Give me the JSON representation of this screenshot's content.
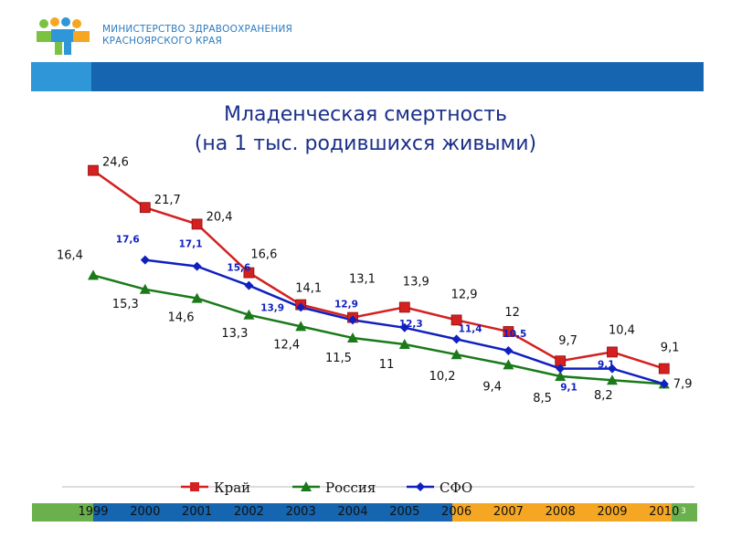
{
  "header": {
    "org_line1": "МИНИСТЕРСТВО ЗДРАВООХРАНЕНИЯ",
    "org_line2": "КРАСНОЯРСКОГО КРАЯ"
  },
  "slide": {
    "title_line1": "Младенческая смертность",
    "title_line2": "(на 1 тыс. родившихся живыми)",
    "page_number": "3"
  },
  "colors": {
    "kray": "#d42020",
    "russia": "#1a7a1a",
    "sfo": "#1020c0",
    "bar_green": "#6ab04c",
    "bar_blue": "#1565b0",
    "bar_orange": "#f5a623"
  },
  "chart_data": {
    "type": "line",
    "title": "Младенческая смертность (на 1 тыс. родившихся живыми)",
    "categories": [
      "1999",
      "2000",
      "2001",
      "2002",
      "2003",
      "2004",
      "2005",
      "2006",
      "2007",
      "2008",
      "2009",
      "2010"
    ],
    "series": [
      {
        "name": "Край",
        "values": [
          24.6,
          21.7,
          20.4,
          16.6,
          14.1,
          13.1,
          13.9,
          12.9,
          12,
          9.7,
          10.4,
          9.1
        ],
        "labels": [
          "24,6",
          "21,7",
          "20,4",
          "16,6",
          "14,1",
          "13,1",
          "13,9",
          "12,9",
          "12",
          "9,7",
          "10,4",
          "9,1"
        ]
      },
      {
        "name": "Россия",
        "values": [
          16.4,
          15.3,
          14.6,
          13.3,
          12.4,
          11.5,
          11,
          10.2,
          9.4,
          8.5,
          8.2,
          7.9
        ],
        "labels": [
          "16,4",
          "15,3",
          "14,6",
          "13,3",
          "12,4",
          "11,5",
          "11",
          "10,2",
          "9,4",
          "8,5",
          "8,2",
          "7,9"
        ]
      },
      {
        "name": "СФО",
        "values": [
          null,
          17.6,
          17.1,
          15.6,
          13.9,
          12.9,
          12.3,
          11.4,
          10.5,
          9.1,
          9.1,
          7.9
        ],
        "labels": [
          null,
          "17,6",
          "17,1",
          "15,6",
          "13,9",
          "12,9",
          "12,3",
          "11,4",
          "10,5",
          "9,1",
          "9,1",
          null
        ]
      }
    ],
    "legend": "bottom",
    "grid": false
  }
}
